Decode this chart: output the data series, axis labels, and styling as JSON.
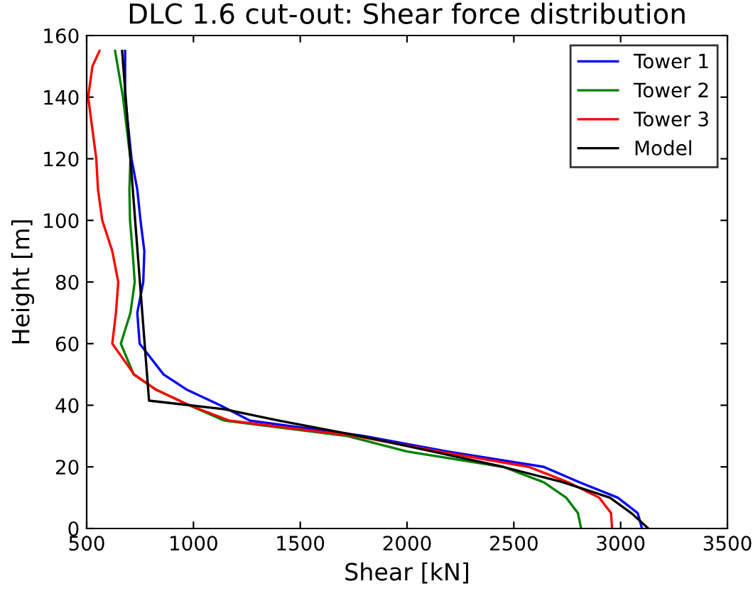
{
  "chart_data": {
    "type": "line",
    "title": "DLC 1.6 cut-out: Shear force distribution",
    "xlabel": "Shear [kN]",
    "ylabel": "Height [m]",
    "xlim": [
      500,
      3500
    ],
    "xticks": [
      500,
      1000,
      1500,
      2000,
      2500,
      3000,
      3500
    ],
    "ylim": [
      0,
      160
    ],
    "yticks": [
      0,
      20,
      40,
      60,
      80,
      100,
      120,
      140,
      160
    ],
    "grid": false,
    "legend": "top right",
    "series": [
      {
        "name": "Tower 1",
        "color": "#0000ff",
        "x": [
          3100,
          3080,
          2987,
          2808,
          2640,
          2190,
          1800,
          1265,
          1125,
          970,
          860,
          748,
          737,
          765,
          770,
          752,
          737,
          710,
          680,
          680
        ],
        "values": [
          0,
          5,
          10,
          15,
          20,
          25,
          30,
          35,
          40,
          45,
          50,
          60,
          70,
          80,
          90,
          100,
          110,
          120,
          140,
          155
        ]
      },
      {
        "name": "Tower 2",
        "color": "#008000",
        "x": [
          2815,
          2800,
          2745,
          2640,
          2450,
          2000,
          1720,
          1145,
          980,
          826,
          720,
          660,
          705,
          725,
          715,
          703,
          700,
          705,
          670,
          633
        ],
        "values": [
          0,
          5,
          10,
          15,
          20,
          25,
          30,
          35,
          40,
          45,
          50,
          60,
          70,
          80,
          90,
          100,
          110,
          120,
          140,
          155
        ]
      },
      {
        "name": "Tower 3",
        "color": "#ff0000",
        "x": [
          2960,
          2955,
          2900,
          2755,
          2570,
          2150,
          1760,
          1170,
          980,
          826,
          722,
          620,
          637,
          648,
          620,
          573,
          553,
          545,
          507,
          527,
          560
        ],
        "values": [
          0,
          5,
          10,
          15,
          20,
          25,
          30,
          35,
          40,
          45,
          50,
          60,
          70,
          80,
          90,
          100,
          110,
          120,
          140,
          150,
          155
        ]
      },
      {
        "name": "Model",
        "color": "#000000",
        "x": [
          3130,
          3050,
          2950,
          2730,
          2450,
          2120,
          1780,
          1400,
          1145,
          792,
          666
        ],
        "values": [
          0,
          5,
          10,
          15,
          20,
          25,
          30,
          35,
          38.7,
          41.5,
          155
        ]
      }
    ]
  }
}
